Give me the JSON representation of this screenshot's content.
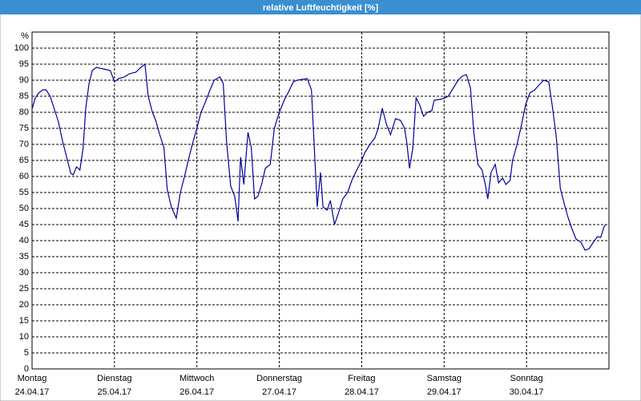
{
  "chart_data": {
    "type": "line",
    "title": "relative Luftfeuchtigkeit [%]",
    "y_unit": "%",
    "xlim": [
      0,
      7
    ],
    "ylim": [
      0,
      105
    ],
    "xticks": [
      {
        "value": 0,
        "label": "Montag",
        "date": "24.04.17"
      },
      {
        "value": 1,
        "label": "Dienstag",
        "date": "25.04.17"
      },
      {
        "value": 2,
        "label": "Mittwoch",
        "date": "26.04.17"
      },
      {
        "value": 3,
        "label": "Donnerstag",
        "date": "27.04.17"
      },
      {
        "value": 4,
        "label": "Freitag",
        "date": "28.04.17"
      },
      {
        "value": 5,
        "label": "Samstag",
        "date": "29.04.17"
      },
      {
        "value": 6,
        "label": "Sonntag",
        "date": "30.04.17"
      },
      {
        "value": 7,
        "label": "",
        "date": ""
      }
    ],
    "yticks": [
      0,
      5,
      10,
      15,
      20,
      25,
      30,
      35,
      40,
      45,
      50,
      55,
      60,
      65,
      70,
      75,
      80,
      85,
      90,
      95,
      100
    ],
    "grid": true,
    "series": [
      {
        "color": "#0000a0",
        "x": [
          0,
          0.04,
          0.08,
          0.13,
          0.17,
          0.22,
          0.27,
          0.32,
          0.37,
          0.42,
          0.47,
          0.5,
          0.54,
          0.58,
          0.62,
          0.65,
          0.69,
          0.73,
          0.78,
          0.87,
          0.95,
          1.0,
          1.05,
          1.12,
          1.18,
          1.26,
          1.32,
          1.37,
          1.41,
          1.46,
          1.5,
          1.55,
          1.6,
          1.64,
          1.69,
          1.75,
          1.8,
          1.85,
          1.9,
          1.95,
          2.0,
          2.05,
          2.1,
          2.16,
          2.21,
          2.28,
          2.32,
          2.36,
          2.41,
          2.46,
          2.5,
          2.53,
          2.57,
          2.62,
          2.66,
          2.7,
          2.74,
          2.79,
          2.83,
          2.89,
          2.94,
          3.0,
          3.06,
          3.11,
          3.17,
          3.22,
          3.28,
          3.34,
          3.39,
          3.43,
          3.46,
          3.5,
          3.53,
          3.58,
          3.62,
          3.67,
          3.72,
          3.77,
          3.83,
          3.88,
          3.94,
          3.99,
          4.04,
          4.1,
          4.16,
          4.2,
          4.25,
          4.3,
          4.35,
          4.41,
          4.47,
          4.52,
          4.55,
          4.58,
          4.62,
          4.66,
          4.7,
          4.75,
          4.8,
          4.85,
          4.88,
          4.94,
          4.99,
          5.05,
          5.11,
          5.17,
          5.22,
          5.27,
          5.32,
          5.36,
          5.41,
          5.46,
          5.5,
          5.53,
          5.57,
          5.62,
          5.66,
          5.71,
          5.75,
          5.8,
          5.83,
          5.88,
          5.93,
          5.99,
          6.04,
          6.1,
          6.16,
          6.21,
          6.27,
          6.31,
          6.36,
          6.41,
          6.46,
          6.5,
          6.55,
          6.6,
          6.66,
          6.71,
          6.76,
          6.81,
          6.86,
          6.9,
          6.94,
          6.96
        ],
        "values": [
          81,
          84.5,
          86,
          87,
          87,
          85,
          81,
          77,
          71,
          66,
          61,
          60.5,
          63,
          62,
          69,
          81,
          88.75,
          93,
          94,
          93.5,
          93,
          89.5,
          90.5,
          91,
          92,
          92.5,
          94,
          95,
          85,
          80,
          77.5,
          73,
          69,
          56,
          50.5,
          47,
          55,
          60,
          65.5,
          70.5,
          75,
          80,
          83,
          87,
          90,
          91,
          89,
          71,
          57,
          53.75,
          46,
          66,
          57.5,
          73.75,
          69,
          53,
          53.75,
          58,
          62.5,
          63.75,
          75,
          80,
          83.75,
          86.25,
          89.5,
          90,
          90.25,
          90.5,
          87,
          66.25,
          50.5,
          61.25,
          50.5,
          49.5,
          52.5,
          45,
          48.75,
          53,
          55,
          58.75,
          62,
          64.5,
          67.5,
          70,
          72,
          75,
          81.25,
          76.25,
          73,
          78,
          77.5,
          75,
          70,
          62.5,
          68.75,
          84.5,
          82.5,
          78.75,
          80,
          80.5,
          83.75,
          84,
          84.25,
          85,
          87.5,
          90,
          91.25,
          91.75,
          87.5,
          73.75,
          63.75,
          62,
          57.5,
          53,
          61.25,
          63.75,
          58,
          59.5,
          57.5,
          58.75,
          65,
          69.5,
          75,
          82.5,
          86,
          87,
          88.75,
          90,
          89.5,
          82.5,
          72.5,
          56.25,
          51.25,
          47.5,
          43.75,
          40.5,
          39.5,
          37,
          37.5,
          39.5,
          41.25,
          41,
          44.25,
          45
        ]
      }
    ]
  }
}
